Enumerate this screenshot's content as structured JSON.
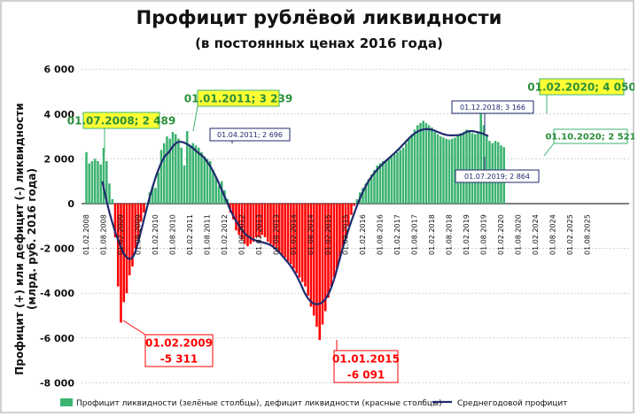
{
  "chart_data": {
    "type": "bar",
    "title": "Профицит рублёвой ликвидности",
    "subtitle": "(в постоянных ценах 2016 года)",
    "ylabel": [
      "Профицит (+) или дефицит (-) ликвидности",
      "(млрд. руб. 2016 года)"
    ],
    "ylim": [
      -8000,
      6000
    ],
    "yticks": [
      6000,
      4000,
      2000,
      0,
      -2000,
      -4000,
      -6000,
      -8000
    ],
    "ytick_labels": [
      "6 000",
      "4 000",
      "2 000",
      "0",
      "-2 000",
      "-4 000",
      "-6 000",
      "-8 000"
    ],
    "x_start": "2008-02",
    "xtick_labels": [
      "01.02.2008",
      "01.08.2008",
      "01.02.2009",
      "01.08.2009",
      "01.02.2010",
      "01.08.2010",
      "01.02.2011",
      "01.08.2011",
      "01.02.2012",
      "01.08.2012",
      "01.02.2013",
      "01.08.2013",
      "01.02.2014",
      "01.08.2014",
      "01.02.2015",
      "01.08.2015",
      "01.02.2016",
      "01.08.2016",
      "01.02.2017",
      "01.08.2017",
      "01.02.2018",
      "01.08.2018",
      "01.02.2019",
      "01.08.2019",
      "01.02.2020",
      "01.08.2020",
      "01.02.2024",
      "01.08.2024",
      "01.02.2025",
      "01.08.2025"
    ],
    "series": [
      {
        "name": "Профицит ликвидности (зелёные столбцы), дефицит ликвидности (красные столбцы)",
        "color_positive": "#3cb371",
        "color_negative": "#ff0000",
        "monthly_values": [
          2300,
          1800,
          1900,
          2000,
          1900,
          1750,
          2489,
          1900,
          900,
          200,
          -1500,
          -3700,
          -5311,
          -4400,
          -4000,
          -3200,
          -2800,
          -2000,
          -1600,
          -800,
          -400,
          0,
          500,
          800,
          700,
          1400,
          2400,
          2700,
          3000,
          2900,
          3200,
          3100,
          2900,
          2500,
          1700,
          3239,
          2600,
          2700,
          2600,
          2500,
          2300,
          2100,
          2000,
          1900,
          1500,
          1200,
          800,
          1000,
          600,
          200,
          -400,
          -700,
          -1200,
          -1400,
          -1600,
          -1800,
          -1900,
          -1800,
          -1700,
          -1500,
          -1500,
          -1400,
          -1500,
          -1700,
          -1800,
          -1900,
          -2000,
          -2200,
          -2300,
          -2400,
          -2600,
          -2700,
          -2900,
          -3100,
          -3300,
          -3500,
          -3700,
          -4100,
          -4600,
          -5000,
          -5500,
          -6091,
          -5400,
          -4800,
          -4200,
          -3700,
          -3300,
          -2900,
          -2500,
          -2000,
          -1500,
          -1000,
          -500,
          -100,
          200,
          500,
          700,
          900,
          1100,
          1300,
          1500,
          1700,
          1800,
          1900,
          1950,
          2000,
          2100,
          2200,
          2300,
          2400,
          2500,
          2700,
          2900,
          3100,
          3300,
          3500,
          3600,
          3700,
          3600,
          3500,
          3400,
          3200,
          3100,
          3000,
          2950,
          2900,
          2864,
          2900,
          2950,
          3050,
          3150,
          3200,
          3300,
          3250,
          3150,
          3100,
          3200,
          4050,
          3500,
          3000,
          2800,
          2700,
          2800,
          2750,
          2600,
          2521
        ]
      },
      {
        "name": "Среднегодовой профицит",
        "color": "#1f2a6e"
      }
    ],
    "annotations": [
      {
        "label": "01.07.2008; 2 489",
        "style": "yellow"
      },
      {
        "label": "01.01.2011; 3 239",
        "style": "yellow"
      },
      {
        "label": "01.04.2011; 2 696",
        "style": "white-navy"
      },
      {
        "label": "01.12.2018; 3 166",
        "style": "white-navy"
      },
      {
        "label": "01.02.2020; 4 050",
        "style": "yellow"
      },
      {
        "label": "01.10.2020; 2 521",
        "style": "white-green"
      },
      {
        "label": "01.07.2019; 2 864",
        "style": "white-navy"
      },
      {
        "label_lines": [
          "01.02.2009",
          "-5 311"
        ],
        "style": "red"
      },
      {
        "label_lines": [
          "01.01.2015",
          "-6 091"
        ],
        "style": "red"
      }
    ]
  }
}
